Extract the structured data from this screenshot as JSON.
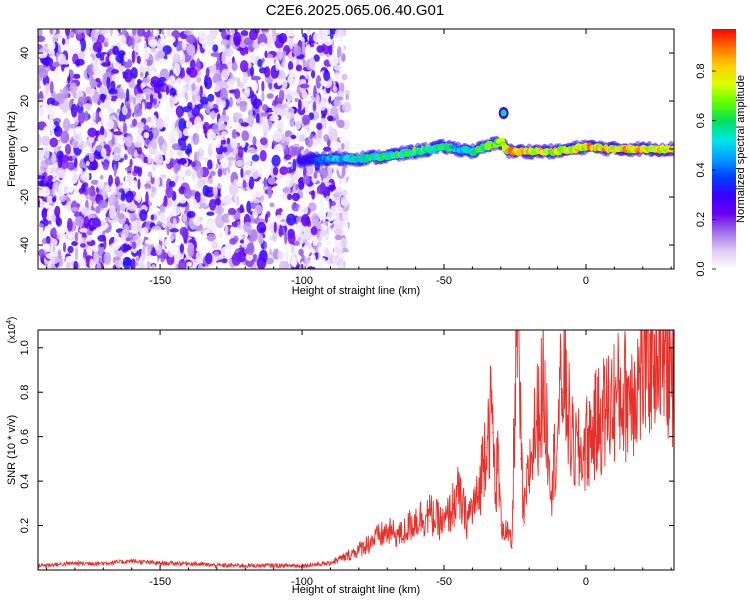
{
  "title": "C2E6.2025.065.06.40.G01",
  "colorbar": {
    "label": "Normalized spectral amplitude",
    "ticks": [
      "0.0",
      "0.2",
      "0.4",
      "0.6",
      "0.8"
    ],
    "tick_values": [
      0.0,
      0.2,
      0.4,
      0.6,
      0.8
    ],
    "range": [
      0,
      0.97
    ],
    "colors": [
      "#ffffff",
      "#e0c8f4",
      "#a070e8",
      "#6a00f0",
      "#3a00ff",
      "#0040ff",
      "#00a0ff",
      "#00e8e8",
      "#00e060",
      "#60ff00",
      "#d8ff00",
      "#ffd000",
      "#ff7000",
      "#ff0000"
    ]
  },
  "chart_data": [
    {
      "type": "heatmap",
      "xlabel": "Height of straight line (km)",
      "ylabel": "Frequency (Hz)",
      "xlim": [
        -193,
        31
      ],
      "ylim": [
        -50,
        50
      ],
      "xticks": [
        -150,
        -100,
        -50,
        0
      ],
      "xtick_labels": [
        "-150",
        "-100",
        "-50",
        "0"
      ],
      "yticks": [
        -40,
        -20,
        0,
        20,
        40
      ],
      "ytick_labels": [
        "-40",
        "-20",
        "0",
        "20",
        "40"
      ],
      "noise_region": {
        "x": [
          -193,
          -84
        ],
        "y": [
          -50,
          50
        ]
      },
      "signal_track": {
        "x": [
          -101,
          -90,
          -80,
          -70,
          -60,
          -50,
          -45,
          -40,
          -35,
          -30,
          -27,
          -20,
          -10,
          0,
          10,
          20,
          31
        ],
        "frequency": [
          -5,
          -4,
          -4,
          -3,
          -1,
          1,
          0,
          -1,
          1,
          3,
          -1,
          -1,
          -1,
          1,
          0,
          0,
          0
        ],
        "amplitude": [
          0.3,
          0.5,
          0.6,
          0.65,
          0.7,
          0.7,
          0.55,
          0.6,
          0.7,
          0.75,
          0.9,
          0.85,
          0.85,
          0.9,
          0.9,
          0.9,
          0.85
        ]
      },
      "secondary_blob": {
        "x": -29,
        "y": 15,
        "amplitude": 0.6
      }
    },
    {
      "type": "line",
      "xlabel": "Height of straight line (km)",
      "ylabel": "SNR (10 * v/v)",
      "y_multiplier": "(x10",
      "y_multiplier_exp": "4",
      "y_multiplier_close": ")",
      "xlim": [
        -193,
        31
      ],
      "ylim": [
        0,
        1.08
      ],
      "xticks": [
        -150,
        -100,
        -50,
        0
      ],
      "xtick_labels": [
        "-150",
        "-100",
        "-50",
        "0"
      ],
      "yticks": [
        0.2,
        0.4,
        0.6,
        0.8,
        1.0
      ],
      "ytick_labels": [
        "0.2",
        "0.4",
        "0.6",
        "0.8",
        "1.0"
      ],
      "color": "#e8302a",
      "series": [
        {
          "x": [
            -193,
            -180,
            -170,
            -160,
            -150,
            -140,
            -130,
            -120,
            -110,
            -100,
            -90,
            -85,
            -80,
            -75,
            -70,
            -65,
            -60,
            -55,
            -50,
            -45,
            -42,
            -40,
            -38,
            -35,
            -33,
            -32,
            -31,
            -30,
            -28,
            -26,
            -25,
            -24,
            -23,
            -22,
            -20,
            -18,
            -15,
            -12,
            -10,
            -8,
            -5,
            -2,
            0,
            5,
            10,
            15,
            20,
            25,
            28,
            31
          ],
          "y": [
            0.02,
            0.03,
            0.03,
            0.04,
            0.03,
            0.03,
            0.02,
            0.02,
            0.02,
            0.02,
            0.03,
            0.05,
            0.08,
            0.12,
            0.15,
            0.14,
            0.2,
            0.22,
            0.18,
            0.3,
            0.2,
            0.25,
            0.28,
            0.55,
            0.62,
            0.3,
            0.45,
            0.2,
            0.15,
            0.1,
            0.75,
            1.08,
            0.5,
            0.2,
            0.4,
            0.55,
            0.72,
            0.35,
            0.55,
            0.8,
            0.5,
            0.45,
            0.5,
            0.6,
            0.68,
            0.7,
            0.78,
            0.92,
            0.85,
            0.75
          ]
        }
      ]
    }
  ]
}
